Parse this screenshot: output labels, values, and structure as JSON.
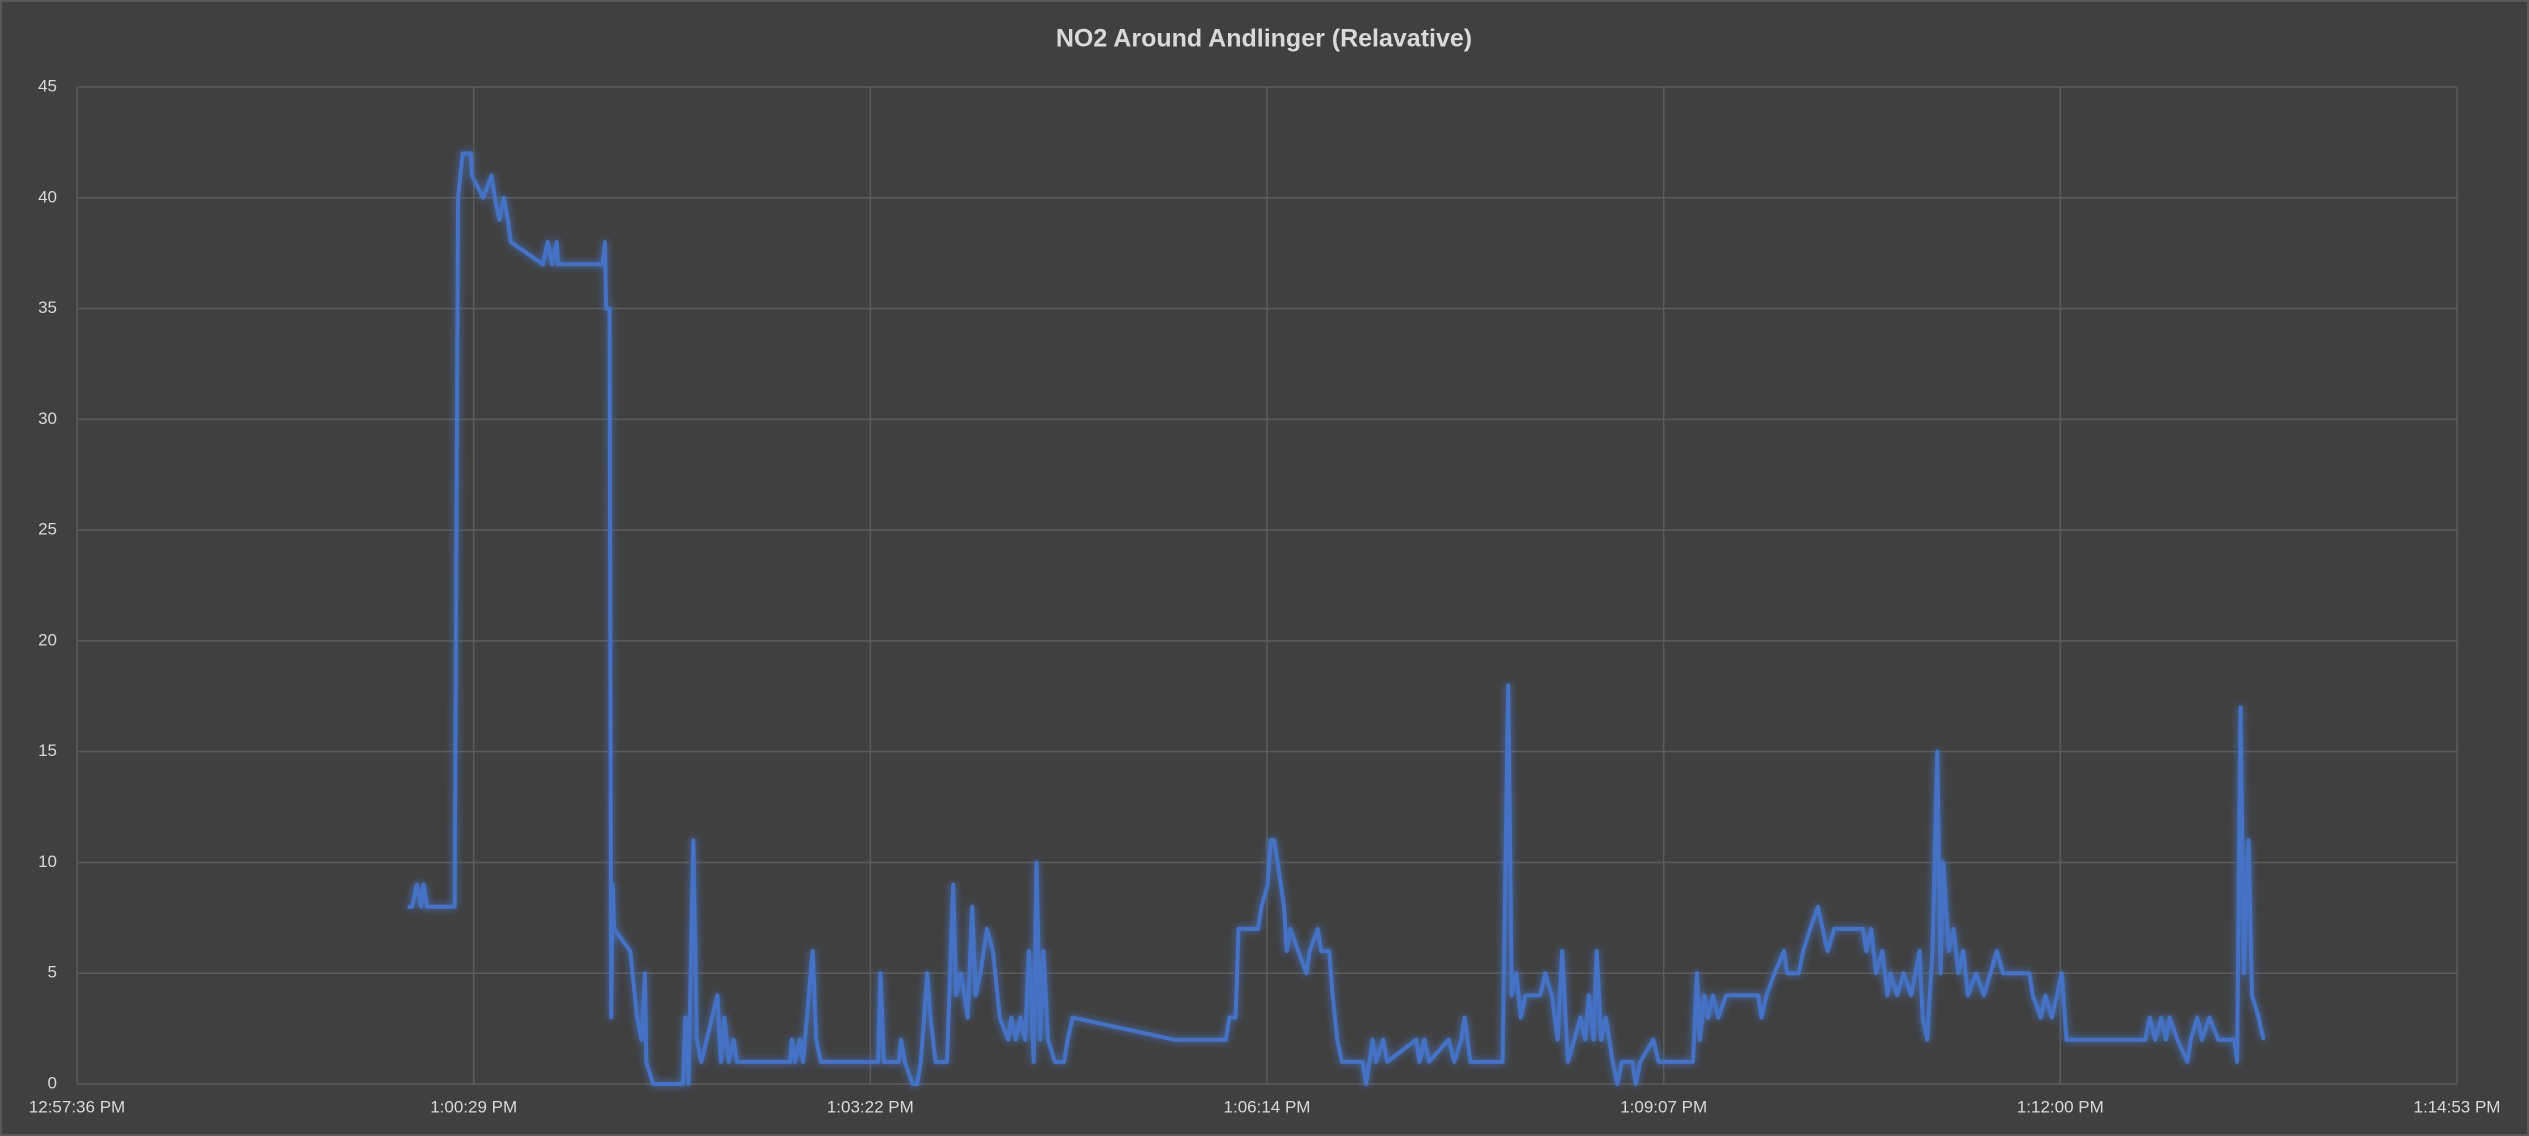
{
  "chart_data": {
    "type": "line",
    "title": "NO2 Around Andlinger  (Relavative)",
    "xlim": [
      0,
      1036.8
    ],
    "xticks": [
      {
        "value": 0,
        "label": "12:57:36 PM"
      },
      {
        "value": 172.8,
        "label": "1:00:29 PM"
      },
      {
        "value": 345.6,
        "label": "1:03:22 PM"
      },
      {
        "value": 518.4,
        "label": "1:06:14 PM"
      },
      {
        "value": 691.2,
        "label": "1:09:07 PM"
      },
      {
        "value": 864,
        "label": "1:12:00 PM"
      },
      {
        "value": 1036.8,
        "label": "1:14:53 PM"
      }
    ],
    "ylim": [
      0,
      45
    ],
    "yticks": [
      0,
      5,
      10,
      15,
      20,
      25,
      30,
      35,
      40,
      45
    ],
    "grid": true,
    "series": [
      {
        "color": "#4472c4",
        "x": [
          144,
          146,
          148,
          150,
          151,
          152.5,
          164.5,
          166,
          168,
          171.5,
          172,
          177,
          180.6,
          182,
          184,
          186,
          187.7,
          189,
          203,
          205,
          207,
          209,
          209.5,
          229,
          230,
          230.5,
          232,
          232.7,
          233.4,
          234,
          241,
          244,
          246,
          247.4,
          248,
          251,
          264,
          265,
          266.4,
          268.5,
          270,
          272,
          279,
          280.5,
          282,
          284,
          286,
          287.5,
          310.7,
          311.4,
          312.8,
          315,
          316.3,
          320.5,
          322,
          324,
          349,
          350,
          351.5,
          358,
          359,
          360.6,
          364,
          366,
          367.6,
          369,
          370.4,
          371.8,
          374,
          379,
          381.7,
          383,
          385,
          386.6,
          388,
          390,
          391.5,
          393.6,
          396.4,
          399,
          402,
          405.6,
          407,
          409,
          411,
          413,
          414.7,
          416.8,
          418,
          419.6,
          421,
          423,
          426,
          430,
          431.6,
          433.7,
          478,
          500.5,
          502,
          504.7,
          506,
          514.5,
          516,
          518.7,
          520,
          521.5,
          523,
          525.8,
          527,
          528.6,
          532,
          535.6,
          537,
          540.5,
          542,
          545.5,
          547,
          549,
          551,
          560,
          561.6,
          563,
          564.4,
          566,
          569,
          570.8,
          583.4,
          584.8,
          587,
          589,
          597.5,
          600,
          603,
          604.5,
          607,
          621,
          623.5,
          625,
          627,
          629,
          631,
          637.5,
          639.6,
          642.5,
          645,
          647,
          649.5,
          655,
          657,
          658.6,
          660.7,
          662,
          664,
          666,
          669,
          671,
          673,
          677.6,
          679,
          681,
          686.7,
          689,
          704,
          705.7,
          707,
          709,
          710.6,
          712.7,
          715,
          718.4,
          732.4,
          733.8,
          736,
          739.5,
          743.6,
          745,
          750,
          752,
          755,
          758.4,
          760.5,
          762.6,
          765.5,
          778,
          779.5,
          781.6,
          783.7,
          786.5,
          788.7,
          790,
          793,
          795.7,
          799,
          802.7,
          804,
          806,
          808.3,
          810.4,
          811.8,
          813,
          815.4,
          817.5,
          819.6,
          821.7,
          823.8,
          827.3,
          830.7,
          836.4,
          839,
          850.5,
          852,
          855.5,
          857.5,
          860.3,
          862.5,
          864.6,
          866.7,
          901,
          903,
          905.3,
          908,
          910,
          911.6,
          915,
          919.4,
          920.8,
          923.6,
          925.7,
          929,
          932.8,
          939.8,
          941,
          942.5,
          944,
          946,
          947.5,
          950.4,
          952.5
        ],
        "values": [
          8,
          8,
          9,
          8,
          9,
          8,
          8,
          40,
          42,
          42,
          41,
          40,
          41,
          40,
          39,
          40,
          39,
          38,
          37,
          38,
          37,
          38,
          37,
          37,
          38,
          35,
          35,
          3,
          9,
          7,
          6,
          3,
          2,
          5,
          1,
          0,
          0,
          3,
          0,
          11,
          2,
          1,
          4,
          1,
          3,
          1,
          2,
          1,
          1,
          2,
          1,
          2,
          1,
          6,
          2,
          1,
          1,
          5,
          1,
          1,
          2,
          1,
          0,
          0,
          1,
          3,
          5,
          3,
          1,
          1,
          9,
          4,
          5,
          4,
          3,
          8,
          4,
          5,
          7,
          6,
          3,
          2,
          3,
          2,
          3,
          2,
          6,
          1,
          10,
          2,
          6,
          2,
          1,
          1,
          2,
          3,
          2,
          2,
          3,
          3,
          7,
          7,
          8,
          9,
          11,
          11,
          10,
          8,
          6,
          7,
          6,
          5,
          6,
          7,
          6,
          6,
          4,
          2,
          1,
          1,
          0,
          1,
          2,
          1,
          2,
          1,
          2,
          1,
          2,
          1,
          2,
          1,
          2,
          3,
          1,
          1,
          18,
          4,
          5,
          3,
          4,
          4,
          5,
          4,
          2,
          6,
          1,
          3,
          2,
          4,
          2,
          6,
          2,
          3,
          1,
          0,
          1,
          1,
          0,
          1,
          2,
          1,
          1,
          5,
          2,
          4,
          3,
          4,
          3,
          4,
          4,
          3,
          4,
          5,
          6,
          5,
          5,
          6,
          7,
          8,
          7,
          6,
          7,
          7,
          6,
          7,
          5,
          6,
          4,
          5,
          4,
          5,
          4,
          6,
          3,
          2,
          6,
          15,
          5,
          10,
          6,
          7,
          5,
          6,
          4,
          5,
          4,
          6,
          5,
          5,
          4,
          3,
          4,
          3,
          4,
          5,
          2,
          2,
          3,
          2,
          3,
          2,
          3,
          2,
          1,
          2,
          3,
          2,
          3,
          2,
          2,
          1,
          17,
          5,
          11,
          4,
          3,
          2
        ]
      }
    ]
  }
}
